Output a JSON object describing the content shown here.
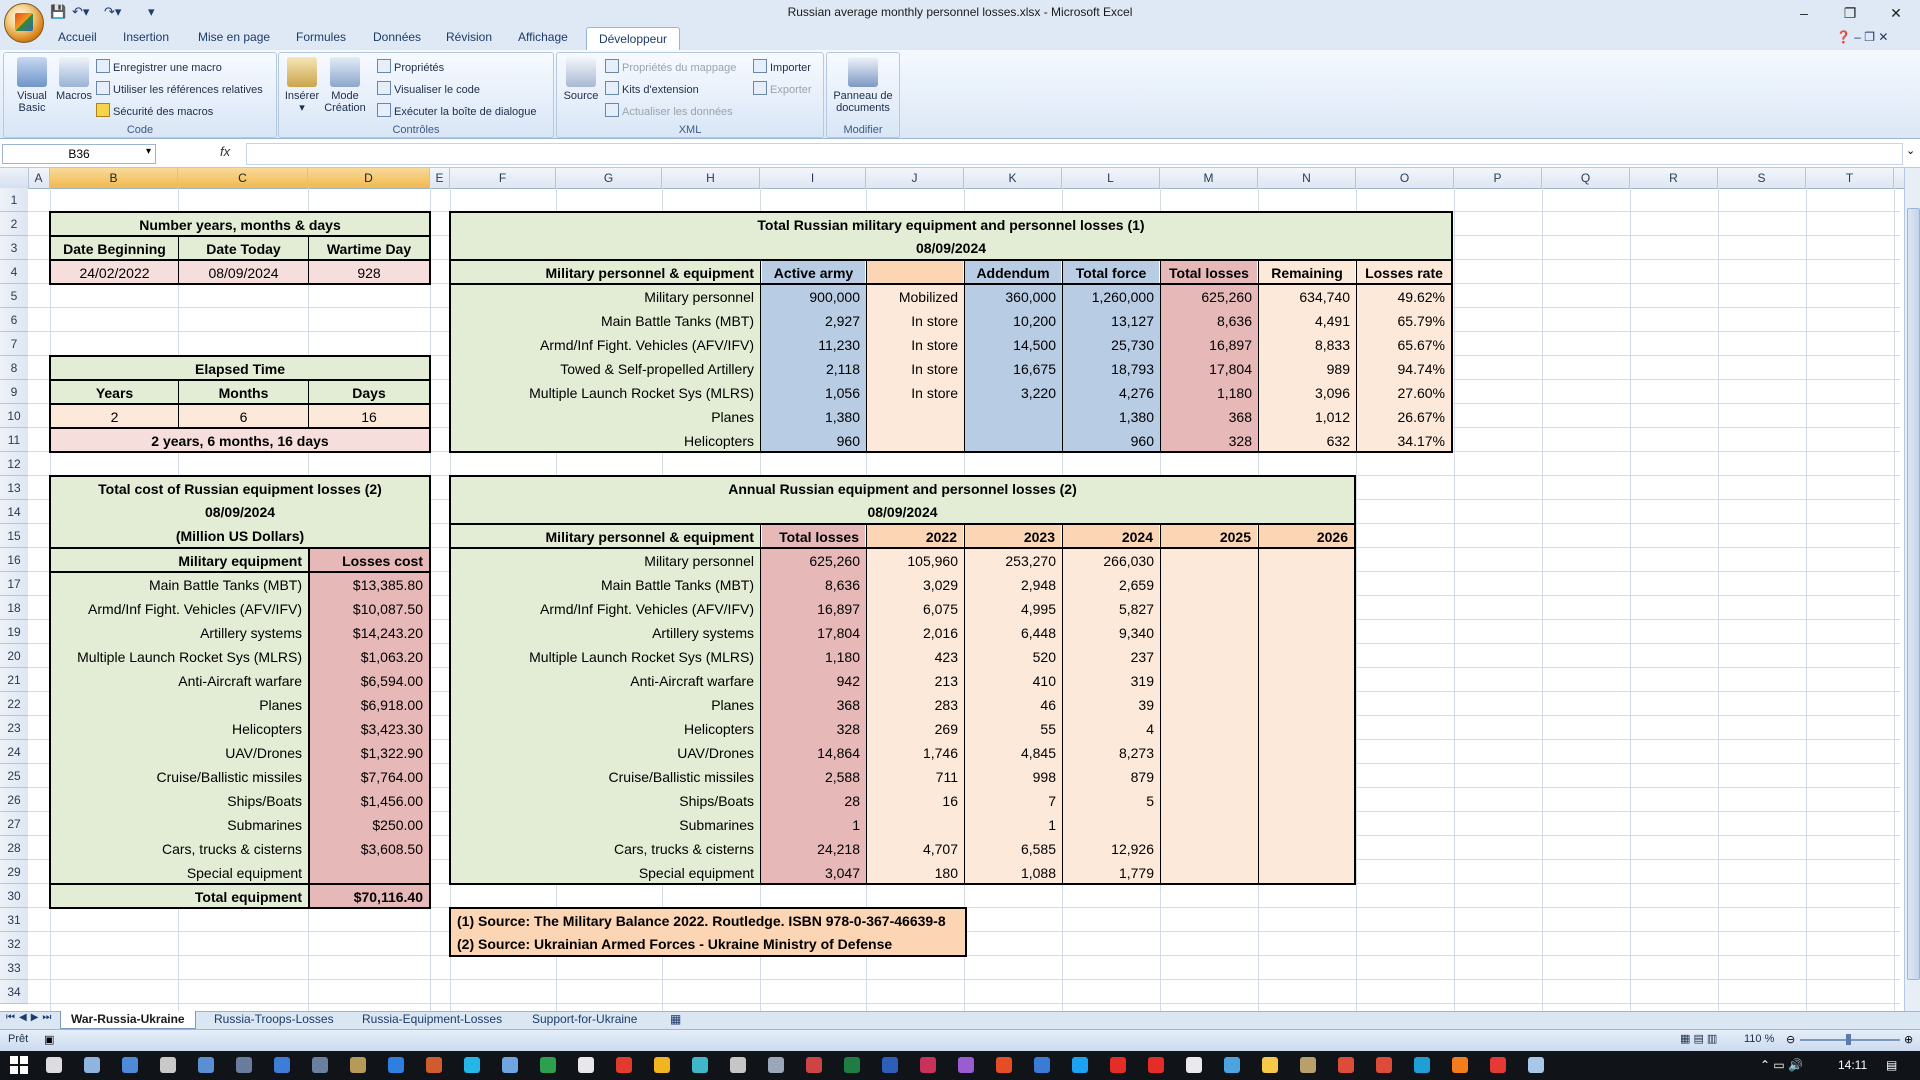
{
  "window": {
    "title": "Russian average monthly personnel losses.xlsx - Microsoft Excel",
    "min": "–",
    "restore": "❐",
    "close": "✕"
  },
  "tabs": [
    "Accueil",
    "Insertion",
    "Mise en page",
    "Formules",
    "Données",
    "Révision",
    "Affichage",
    "Développeur"
  ],
  "ribbon": {
    "code": {
      "label": "Code",
      "visual_basic": "Visual Basic",
      "macros": "Macros",
      "record": "Enregistrer une macro",
      "relative": "Utiliser les références relatives",
      "security": "Sécurité des macros"
    },
    "controls": {
      "label": "Contrôles",
      "insert": "Insérer",
      "design": "Mode Création",
      "properties": "Propriétés",
      "view_code": "Visualiser le code",
      "dialog": "Exécuter la boîte de dialogue"
    },
    "xml": {
      "label": "XML",
      "source": "Source",
      "map_props": "Propriétés du mappage",
      "ext_kits": "Kits d'extension",
      "refresh": "Actualiser les données",
      "import": "Importer",
      "export": "Exporter"
    },
    "modify": {
      "label": "Modifier",
      "doc_panel": "Panneau de documents"
    }
  },
  "formula_bar": {
    "name_box": "B36",
    "fx": "fx",
    "value": ""
  },
  "columns": [
    "A",
    "B",
    "C",
    "D",
    "E",
    "F",
    "G",
    "H",
    "I",
    "J",
    "K",
    "L",
    "M",
    "N",
    "O",
    "P",
    "Q",
    "R",
    "S",
    "T"
  ],
  "rows": [
    "1",
    "2",
    "3",
    "4",
    "5",
    "6",
    "7",
    "8",
    "9",
    "10",
    "11",
    "12",
    "13",
    "14",
    "15",
    "16",
    "17",
    "18",
    "19",
    "20",
    "21",
    "22",
    "23",
    "24",
    "25",
    "26",
    "27",
    "28",
    "29",
    "30",
    "31",
    "32",
    "33",
    "34"
  ],
  "dates": {
    "title": "Number years, months & days",
    "h_begin": "Date Beginning",
    "h_today": "Date Today",
    "h_day": "Wartime Day",
    "begin": "24/02/2022",
    "today": "08/09/2024",
    "day": "928"
  },
  "elapsed": {
    "title": "Elapsed Time",
    "h_years": "Years",
    "h_months": "Months",
    "h_days": "Days",
    "years": "2",
    "months": "6",
    "days": "16",
    "summary": "2 years, 6 months, 16 days"
  },
  "total_losses": {
    "title": "Total Russian military equipment and personnel losses (1)",
    "date": "08/09/2024",
    "headers": [
      "Military personnel & equipment",
      "Active army",
      "",
      "Addendum",
      "Total force",
      "Total losses",
      "Remaining",
      "Losses rate"
    ],
    "rows": [
      [
        "Military personnel",
        "900,000",
        "Mobilized",
        "360,000",
        "1,260,000",
        "625,260",
        "634,740",
        "49.62%"
      ],
      [
        "Main Battle Tanks (MBT)",
        "2,927",
        "In store",
        "10,200",
        "13,127",
        "8,636",
        "4,491",
        "65.79%"
      ],
      [
        "Armd/Inf Fight. Vehicles (AFV/IFV)",
        "11,230",
        "In store",
        "14,500",
        "25,730",
        "16,897",
        "8,833",
        "65.67%"
      ],
      [
        "Towed & Self-propelled Artillery",
        "2,118",
        "In store",
        "16,675",
        "18,793",
        "17,804",
        "989",
        "94.74%"
      ],
      [
        "Multiple Launch Rocket Sys (MLRS)",
        "1,056",
        "In store",
        "3,220",
        "4,276",
        "1,180",
        "3,096",
        "27.60%"
      ],
      [
        "Planes",
        "1,380",
        "",
        "",
        "1,380",
        "368",
        "1,012",
        "26.67%"
      ],
      [
        "Helicopters",
        "960",
        "",
        "",
        "960",
        "328",
        "632",
        "34.17%"
      ]
    ]
  },
  "cost": {
    "title": "Total cost of Russian equipment losses (2)",
    "date": "08/09/2024",
    "unit": "(Million US Dollars)",
    "h_equip": "Military equipment",
    "h_cost": "Losses cost",
    "rows": [
      [
        "Main Battle Tanks (MBT)",
        "$13,385.80"
      ],
      [
        "Armd/Inf Fight. Vehicles (AFV/IFV)",
        "$10,087.50"
      ],
      [
        "Artillery systems",
        "$14,243.20"
      ],
      [
        "Multiple Launch Rocket Sys (MLRS)",
        "$1,063.20"
      ],
      [
        "Anti-Aircraft warfare",
        "$6,594.00"
      ],
      [
        "Planes",
        "$6,918.00"
      ],
      [
        "Helicopters",
        "$3,423.30"
      ],
      [
        "UAV/Drones",
        "$1,322.90"
      ],
      [
        "Cruise/Ballistic missiles",
        "$7,764.00"
      ],
      [
        "Ships/Boats",
        "$1,456.00"
      ],
      [
        "Submarines",
        "$250.00"
      ],
      [
        "Cars, trucks & cisterns",
        "$3,608.50"
      ],
      [
        "Special equipment",
        ""
      ]
    ],
    "total_label": "Total equipment",
    "total_value": "$70,116.40"
  },
  "annual": {
    "title": "Annual Russian equipment and personnel losses (2)",
    "date": "08/09/2024",
    "headers": [
      "Military personnel & equipment",
      "Total losses",
      "2022",
      "2023",
      "2024",
      "2025",
      "2026"
    ],
    "rows": [
      [
        "Military personnel",
        "625,260",
        "105,960",
        "253,270",
        "266,030",
        "",
        ""
      ],
      [
        "Main Battle Tanks (MBT)",
        "8,636",
        "3,029",
        "2,948",
        "2,659",
        "",
        ""
      ],
      [
        "Armd/Inf Fight. Vehicles (AFV/IFV)",
        "16,897",
        "6,075",
        "4,995",
        "5,827",
        "",
        ""
      ],
      [
        "Artillery systems",
        "17,804",
        "2,016",
        "6,448",
        "9,340",
        "",
        ""
      ],
      [
        "Multiple Launch Rocket Sys (MLRS)",
        "1,180",
        "423",
        "520",
        "237",
        "",
        ""
      ],
      [
        "Anti-Aircraft warfare",
        "942",
        "213",
        "410",
        "319",
        "",
        ""
      ],
      [
        "Planes",
        "368",
        "283",
        "46",
        "39",
        "",
        ""
      ],
      [
        "Helicopters",
        "328",
        "269",
        "55",
        "4",
        "",
        ""
      ],
      [
        "UAV/Drones",
        "14,864",
        "1,746",
        "4,845",
        "8,273",
        "",
        ""
      ],
      [
        "Cruise/Ballistic missiles",
        "2,588",
        "711",
        "998",
        "879",
        "",
        ""
      ],
      [
        "Ships/Boats",
        "28",
        "16",
        "7",
        "5",
        "",
        ""
      ],
      [
        "Submarines",
        "1",
        "",
        "1",
        "",
        "",
        ""
      ],
      [
        "Cars, trucks & cisterns",
        "24,218",
        "4,707",
        "6,585",
        "12,926",
        "",
        ""
      ],
      [
        "Special equipment",
        "3,047",
        "180",
        "1,088",
        "1,779",
        "",
        ""
      ]
    ]
  },
  "sources": {
    "s1": "(1) Source: The Military Balance 2022. Routledge. ISBN 978-0-367-46639-8",
    "s2": "(2) Source: Ukrainian Armed Forces - Ukraine Ministry of Defense"
  },
  "sheets": [
    "War-Russia-Ukraine",
    "Russia-Troops-Losses",
    "Russia-Equipment-Losses",
    "Support-for-Ukraine"
  ],
  "status": {
    "ready": "Prêt",
    "zoom": "110 %"
  },
  "taskbar": {
    "time": "14:11"
  },
  "colors": {
    "green": "#e3ecd4",
    "pink_dark": "#e6b8b8",
    "pink_light": "#f5dedc",
    "peach": "#fde9d9",
    "orange": "#fcd5b4",
    "blue": "#b8cce4"
  }
}
